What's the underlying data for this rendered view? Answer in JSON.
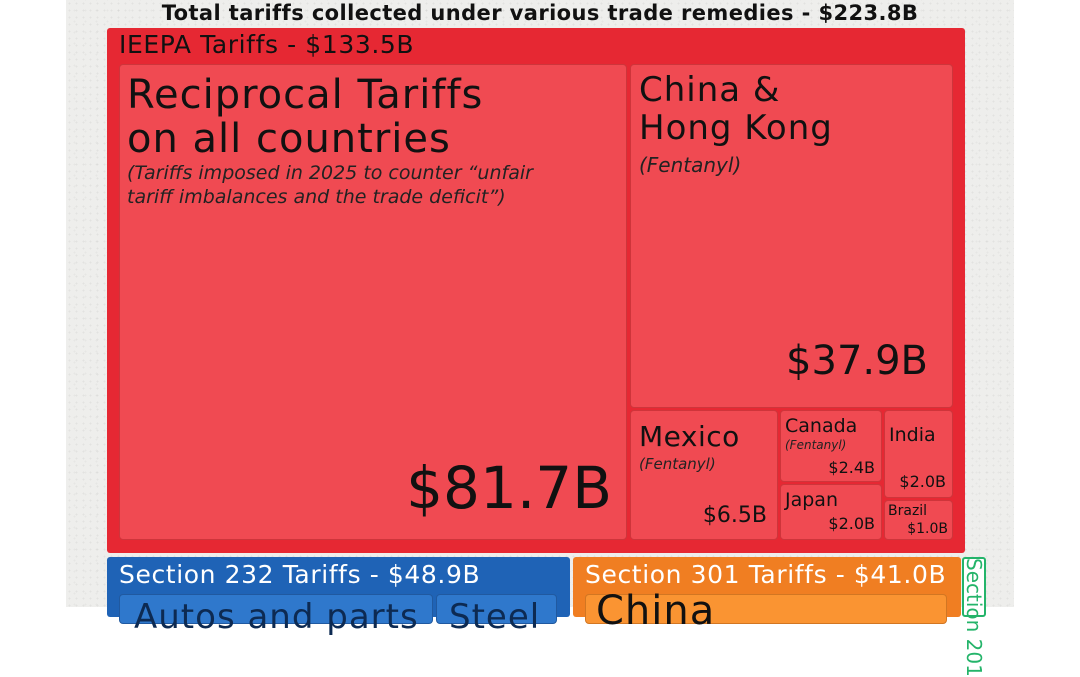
{
  "chart_data": {
    "type": "treemap",
    "title": "Total tariffs collected under various trade remedies - $223.8B",
    "unit": "$B",
    "total": 223.8,
    "groups": [
      {
        "name": "IEEPA Tariffs - $133.5B",
        "value": 133.5,
        "color": "#e62833",
        "children": [
          {
            "name": "Reciprocal Tariffs on all countries",
            "name_lines": [
              "Reciprocal Tariffs",
              "on all countries"
            ],
            "note_lines": [
              "(Tariffs imposed in 2025 to counter “unfair",
              "tariff imbalances and the trade deficit”)"
            ],
            "value": 81.7,
            "label": "$81.7B"
          },
          {
            "name": "China & Hong Kong",
            "name_lines": [
              "China &",
              "Hong Kong"
            ],
            "note": "(Fentanyl)",
            "value": 37.9,
            "label": "$37.9B"
          },
          {
            "name": "Mexico",
            "note": "(Fentanyl)",
            "value": 6.5,
            "label": "$6.5B"
          },
          {
            "name": "Canada",
            "note": "(Fentanyl)",
            "value": 2.4,
            "label": "$2.4B"
          },
          {
            "name": "Japan",
            "value": 2.0,
            "label": "$2.0B"
          },
          {
            "name": "India",
            "value": 2.0,
            "label": "$2.0B"
          },
          {
            "name": "Brazil",
            "value": 1.0,
            "label": "$1.0B"
          }
        ]
      },
      {
        "name": "Section 232 Tariffs - $48.9B",
        "value": 48.9,
        "color": "#1f63b6",
        "children": [
          {
            "name": "Autos and parts",
            "partial": true
          },
          {
            "name": "Steel",
            "partial": true
          }
        ]
      },
      {
        "name": "Section 301 Tariffs - $41.0B",
        "value": 41.0,
        "color": "#f07e22",
        "children": [
          {
            "name": "China",
            "partial": true
          }
        ]
      },
      {
        "name": "Section 201",
        "partial": true,
        "color": "#24b46a",
        "children": []
      }
    ]
  }
}
